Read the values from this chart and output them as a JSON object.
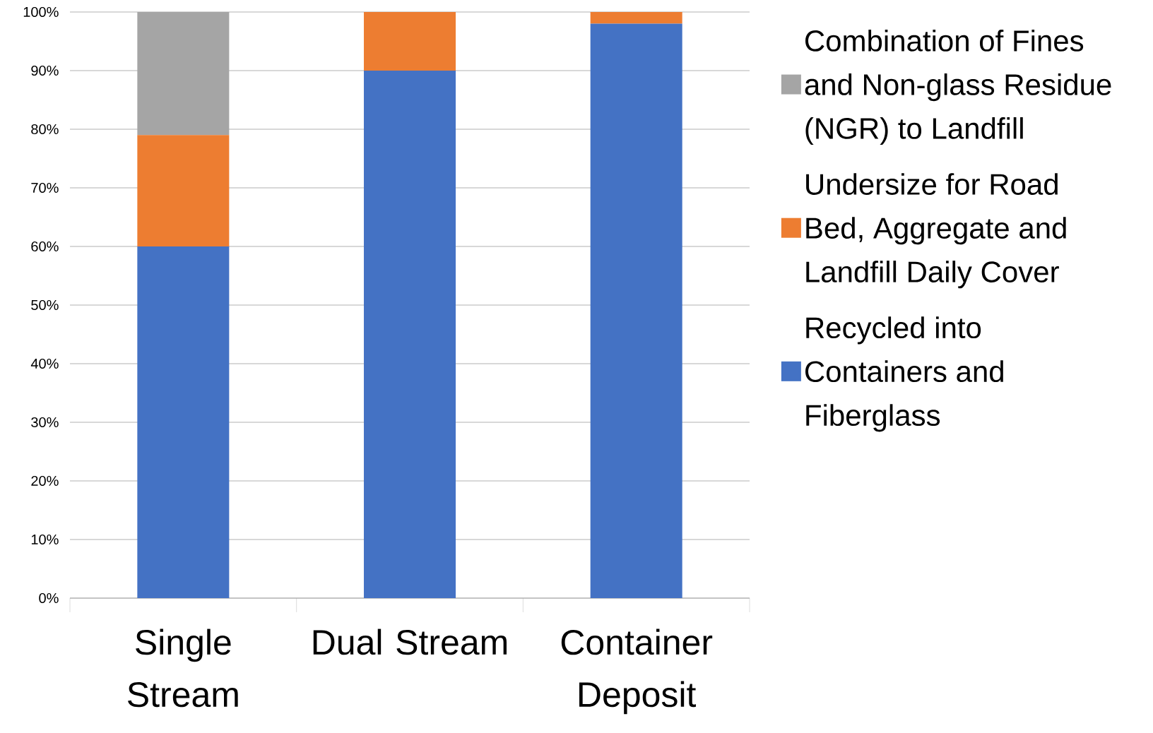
{
  "chart_data": {
    "type": "bar",
    "stacked": true,
    "categories": [
      "Single Stream",
      "Dual Stream",
      "Container Deposit"
    ],
    "series": [
      {
        "name": "Recycled into Containers and Fiberglass",
        "color": "#4472c4",
        "values": [
          60,
          90,
          98
        ]
      },
      {
        "name": "Undersize for Road Bed, Aggregate and Landfill Daily Cover",
        "color": "#ed7d31",
        "values": [
          19,
          10,
          2
        ]
      },
      {
        "name": "Combination of Fines and Non-glass Residue (NGR) to Landfill",
        "color": "#a5a5a5",
        "values": [
          21,
          0,
          0
        ]
      }
    ],
    "ylim": [
      0,
      100
    ],
    "yticks": [
      {
        "value": 0,
        "label": "0%"
      },
      {
        "value": 10,
        "label": "10%"
      },
      {
        "value": 20,
        "label": "20%"
      },
      {
        "value": 30,
        "label": "30%"
      },
      {
        "value": 40,
        "label": "40%"
      },
      {
        "value": 50,
        "label": "50%"
      },
      {
        "value": 60,
        "label": "60%"
      },
      {
        "value": 70,
        "label": "70%"
      },
      {
        "value": 80,
        "label": "80%"
      },
      {
        "value": 90,
        "label": "90%"
      },
      {
        "value": 100,
        "label": "100%"
      }
    ],
    "grid": "y",
    "legend": "right"
  }
}
